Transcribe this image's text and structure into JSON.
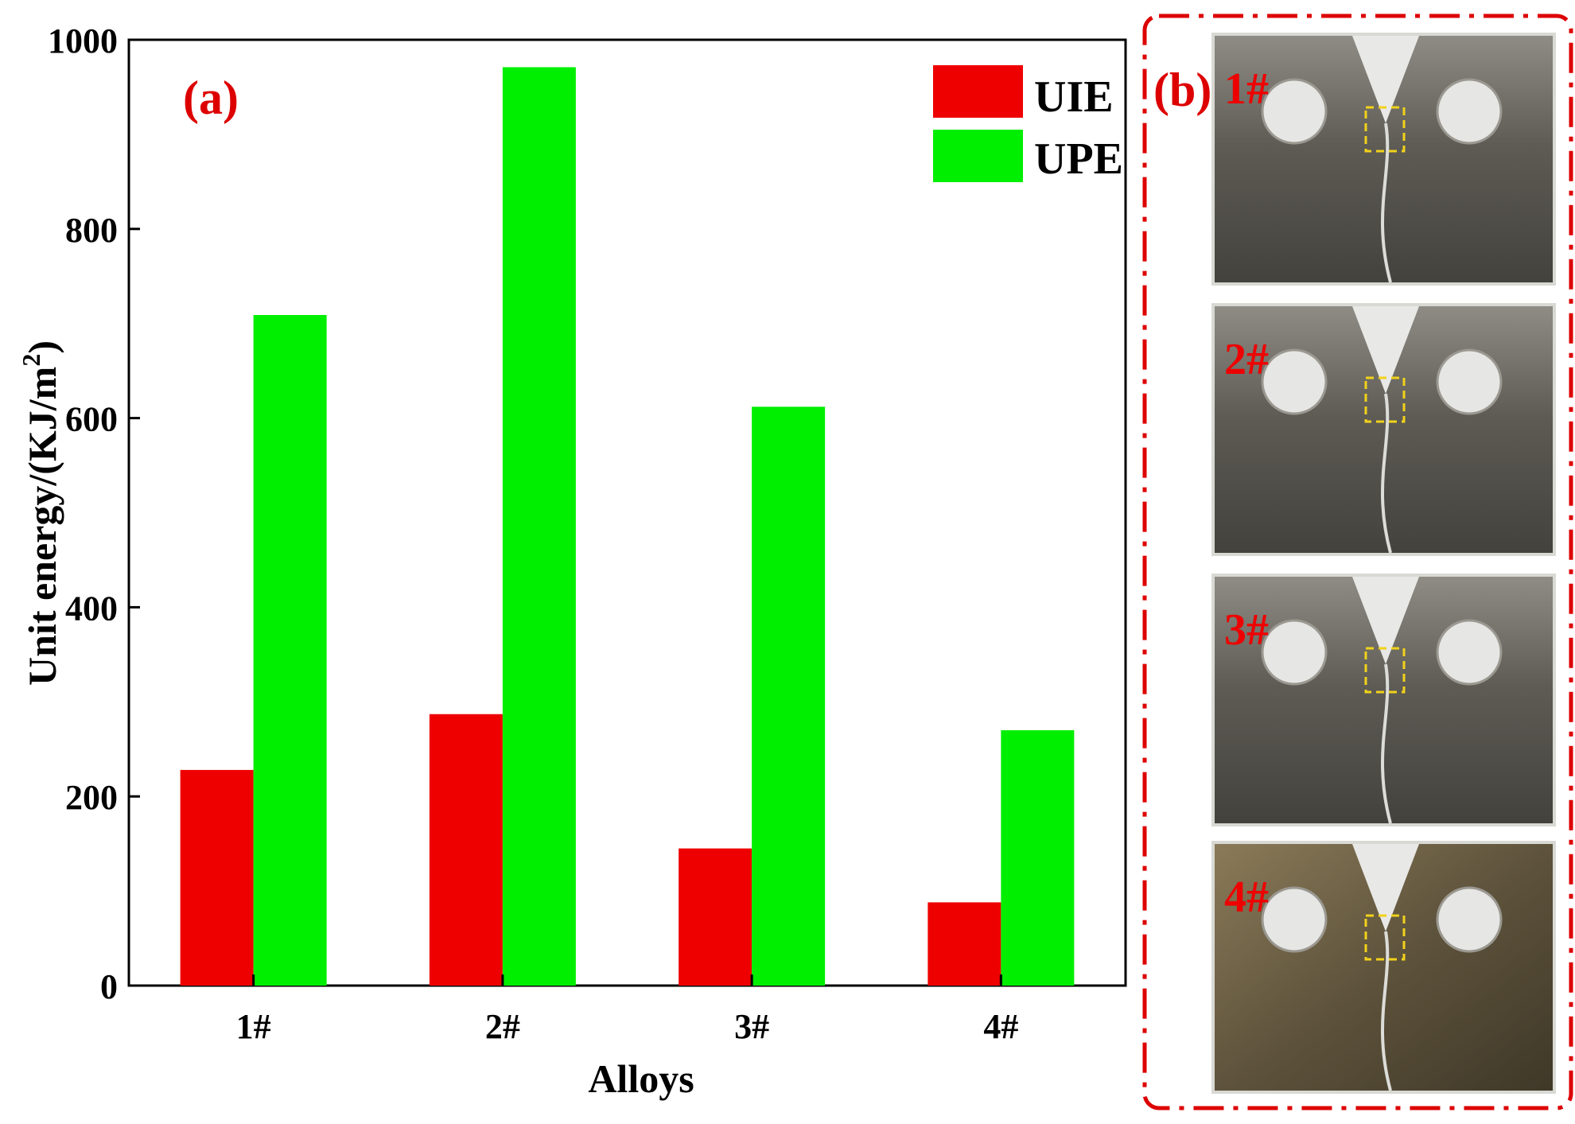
{
  "chart_data": {
    "type": "bar",
    "panel_label": "(a)",
    "title": "",
    "xlabel": "Alloys",
    "ylabel": "Unit energy/(KJ/m",
    "ylabel_sup": "2",
    "ylabel_end": ")",
    "ylim": [
      0,
      1000
    ],
    "yticks": [
      0,
      200,
      400,
      600,
      800,
      1000
    ],
    "categories": [
      "1#",
      "2#",
      "3#",
      "4#"
    ],
    "series": [
      {
        "name": "UIE",
        "color": "#ee0000",
        "values": [
          228,
          287,
          145,
          88
        ]
      },
      {
        "name": "UPE",
        "color": "#00ee00",
        "values": [
          709,
          971,
          612,
          270
        ]
      }
    ],
    "legend_position": "top-right",
    "grid": false
  },
  "panel_b": {
    "label": "(b)",
    "border_color": "#dd0000",
    "samples": [
      {
        "label": "1#",
        "tone": "#5f5d55"
      },
      {
        "label": "2#",
        "tone": "#5b5a53"
      },
      {
        "label": "3#",
        "tone": "#5e5d57"
      },
      {
        "label": "4#",
        "tone": "#6b6048"
      }
    ]
  }
}
